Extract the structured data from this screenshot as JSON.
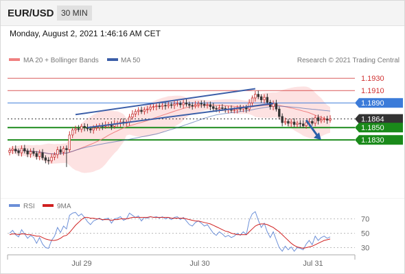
{
  "header": {
    "symbol": "EUR/USD",
    "timeframe": "30 MIN"
  },
  "datetime": "Monday, August 2, 2021 1:46:16 AM CET",
  "legend": {
    "ma20": "MA 20 + Bollinger Bands",
    "ma50": "MA 50",
    "credit": "Research © 2021 Trading Central",
    "rsi": "RSI",
    "rsi_ma": "9MA"
  },
  "colors": {
    "ma20": "#f08080",
    "ma50": "#3b5ea8",
    "bb_fill": "#fde2e2",
    "resistance": "#d03030",
    "pivot": "#3b7bd9",
    "support": "#1a8a1a",
    "current": "#333333",
    "candle_up": "#c83232",
    "candle_down": "#333333",
    "rsi": "#6b8fd8",
    "rsi_ma": "#d02020",
    "arrow": "#2a5fa8"
  },
  "chart_data": [
    {
      "type": "candlestick",
      "title": "EUR/USD",
      "timeframe": "30 MIN",
      "ylim": [
        1.1778,
        1.1948
      ],
      "x_ticks": [
        "Jul 29",
        "Jul 30",
        "Jul 31"
      ],
      "levels": [
        {
          "value": 1.193,
          "label": "1.1930",
          "kind": "resistance"
        },
        {
          "value": 1.191,
          "label": "1.1910",
          "kind": "resistance"
        },
        {
          "value": 1.189,
          "label": "1.1890",
          "kind": "pivot"
        },
        {
          "value": 1.1864,
          "label": "1.1864",
          "kind": "current"
        },
        {
          "value": 1.185,
          "label": "1.1850",
          "kind": "support"
        },
        {
          "value": 1.183,
          "label": "1.1830",
          "kind": "support"
        }
      ],
      "closes": [
        1.1813,
        1.1815,
        1.1812,
        1.1809,
        1.1816,
        1.1812,
        1.1807,
        1.1811,
        1.1808,
        1.1803,
        1.1809,
        1.1801,
        1.1797,
        1.1796,
        1.1802,
        1.1806,
        1.1814,
        1.181,
        1.1816,
        1.1814,
        1.1838,
        1.1846,
        1.1848,
        1.1847,
        1.1852,
        1.185,
        1.1848,
        1.1846,
        1.1849,
        1.185,
        1.1853,
        1.1852,
        1.1854,
        1.1855,
        1.1852,
        1.1856,
        1.1857,
        1.1859,
        1.1857,
        1.1859,
        1.1867,
        1.1872,
        1.1876,
        1.1878,
        1.1876,
        1.1879,
        1.188,
        1.1883,
        1.1884,
        1.1885,
        1.1884,
        1.1886,
        1.1885,
        1.1887,
        1.1886,
        1.1888,
        1.1889,
        1.1887,
        1.189,
        1.1888,
        1.1886,
        1.1885,
        1.1887,
        1.1889,
        1.1888,
        1.1886,
        1.1887,
        1.1884,
        1.1881,
        1.188,
        1.1882,
        1.1881,
        1.1879,
        1.188,
        1.1878,
        1.1879,
        1.1881,
        1.188,
        1.1882,
        1.188,
        1.189,
        1.1898,
        1.1904,
        1.19,
        1.1895,
        1.1899,
        1.1891,
        1.1884,
        1.1889,
        1.188,
        1.1868,
        1.1858,
        1.186,
        1.1857,
        1.1859,
        1.1855,
        1.1857,
        1.1856,
        1.1853,
        1.1858,
        1.186,
        1.1857,
        1.1866,
        1.1861,
        1.1863,
        1.1864,
        1.1862,
        1.1864
      ],
      "trendlines": [
        {
          "name": "upper channel",
          "from": [
            22,
            1.1871
          ],
          "to": [
            82,
            1.1913
          ]
        },
        {
          "name": "lower channel",
          "from": [
            26,
            1.185
          ],
          "to": [
            88,
            1.1889
          ]
        }
      ],
      "forecast_arrow": {
        "from": [
          99,
          1.1862
        ],
        "to": [
          104,
          1.183
        ]
      }
    },
    {
      "type": "line",
      "title": "RSI",
      "ylim": [
        20,
        80
      ],
      "y_ticks": [
        70,
        50,
        30
      ],
      "series": [
        {
          "name": "RSI",
          "values": [
            50,
            54,
            48,
            45,
            55,
            49,
            43,
            47,
            44,
            36,
            44,
            35,
            30,
            29,
            40,
            46,
            58,
            51,
            60,
            56,
            75,
            78,
            79,
            74,
            77,
            72,
            66,
            62,
            67,
            69,
            71,
            68,
            70,
            71,
            64,
            70,
            71,
            73,
            68,
            70,
            78,
            75,
            72,
            74,
            67,
            72,
            71,
            73,
            72,
            73,
            71,
            73,
            70,
            72,
            69,
            72,
            73,
            69,
            72,
            67,
            62,
            60,
            65,
            67,
            64,
            60,
            62,
            56,
            50,
            47,
            52,
            49,
            45,
            47,
            44,
            46,
            50,
            47,
            52,
            48,
            68,
            77,
            80,
            68,
            58,
            64,
            52,
            44,
            52,
            41,
            30,
            25,
            32,
            27,
            31,
            25,
            30,
            29,
            27,
            35,
            40,
            34,
            46,
            40,
            44,
            46,
            43,
            45
          ]
        },
        {
          "name": "9MA",
          "values": [
            48,
            49,
            49,
            48,
            49,
            49,
            48,
            48,
            47,
            46,
            46,
            44,
            42,
            41,
            40,
            40,
            41,
            43,
            46,
            47,
            51,
            56,
            61,
            65,
            69,
            72,
            72,
            71,
            71,
            70,
            70,
            69,
            69,
            69,
            68,
            69,
            69,
            70,
            70,
            70,
            71,
            72,
            72,
            72,
            72,
            72,
            72,
            73,
            72,
            72,
            72,
            72,
            72,
            72,
            71,
            71,
            71,
            71,
            71,
            70,
            69,
            68,
            67,
            67,
            66,
            65,
            64,
            63,
            61,
            59,
            57,
            55,
            53,
            52,
            50,
            49,
            48,
            48,
            48,
            48,
            52,
            56,
            60,
            62,
            63,
            63,
            62,
            60,
            58,
            55,
            52,
            48,
            44,
            40,
            36,
            33,
            31,
            30,
            29,
            30,
            31,
            32,
            34,
            36,
            38,
            40,
            41,
            42
          ]
        }
      ]
    }
  ]
}
